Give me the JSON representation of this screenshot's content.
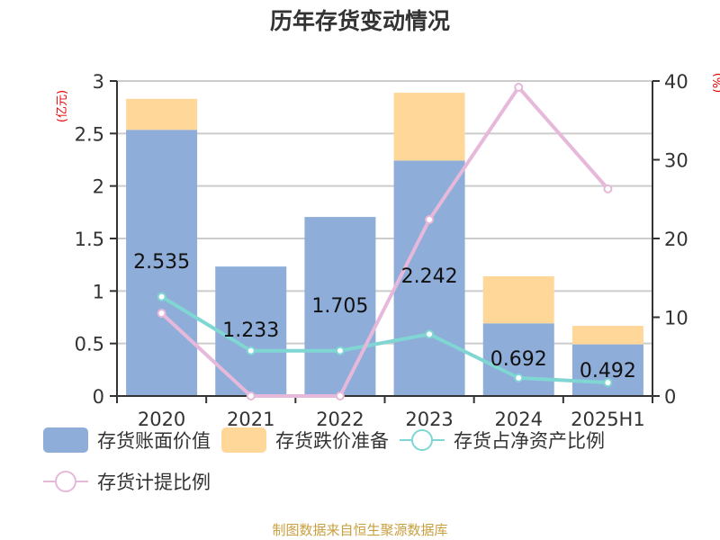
{
  "title": "历年存货变动情况",
  "left_axis_unit": "(亿元)",
  "right_axis_unit": "(%)",
  "source": "制图数据来自恒生聚源数据库",
  "colors": {
    "book_value": "#8eadd9",
    "impairment": "#ffd899",
    "net_asset_ratio": "#7fd6d2",
    "provision_ratio": "#e6b8da",
    "axis": "#333333",
    "grid": "#cccccc",
    "unit_label": "#e60000",
    "source": "#c8a040"
  },
  "legend": [
    {
      "label": "存货账面价值",
      "type": "bar",
      "color": "#8eadd9"
    },
    {
      "label": "存货跌价准备",
      "type": "bar",
      "color": "#ffd899"
    },
    {
      "label": "存货占净资产比例",
      "type": "line",
      "color": "#7fd6d2"
    },
    {
      "label": "存货计提比例",
      "type": "line",
      "color": "#e6b8da"
    }
  ],
  "chart_data": {
    "type": "bar",
    "title": "历年存货变动情况",
    "categories": [
      "2020",
      "2021",
      "2022",
      "2023",
      "2024",
      "2025H1"
    ],
    "xlabel": "",
    "ylabel": "(亿元)",
    "ylabel_right": "(%)",
    "ylim": [
      0,
      3
    ],
    "ylim_right": [
      0,
      40
    ],
    "yticks": [
      "0",
      "0.5",
      "1",
      "1.5",
      "2",
      "2.5",
      "3"
    ],
    "yticks_right": [
      "0",
      "10",
      "20",
      "30",
      "40"
    ],
    "grid": true,
    "legend_position": "bottom",
    "series": [
      {
        "name": "存货账面价值",
        "type": "bar",
        "stack": "inv",
        "axis": "left",
        "values": [
          2.535,
          1.233,
          1.705,
          2.242,
          0.692,
          0.492
        ],
        "labels": [
          "2.535",
          "1.233",
          "1.705",
          "2.242",
          "0.692",
          "0.492"
        ]
      },
      {
        "name": "存货跌价准备",
        "type": "bar",
        "stack": "inv",
        "axis": "left",
        "values": [
          0.295,
          0,
          0,
          0.646,
          0.448,
          0.176
        ]
      },
      {
        "name": "存货占净资产比例",
        "type": "line",
        "axis": "right",
        "values": [
          12.6,
          5.75,
          5.75,
          7.85,
          2.3,
          1.7
        ]
      },
      {
        "name": "存货计提比例",
        "type": "line",
        "axis": "right",
        "values": [
          10.5,
          0,
          0,
          22.4,
          39.2,
          26.3
        ]
      }
    ]
  }
}
